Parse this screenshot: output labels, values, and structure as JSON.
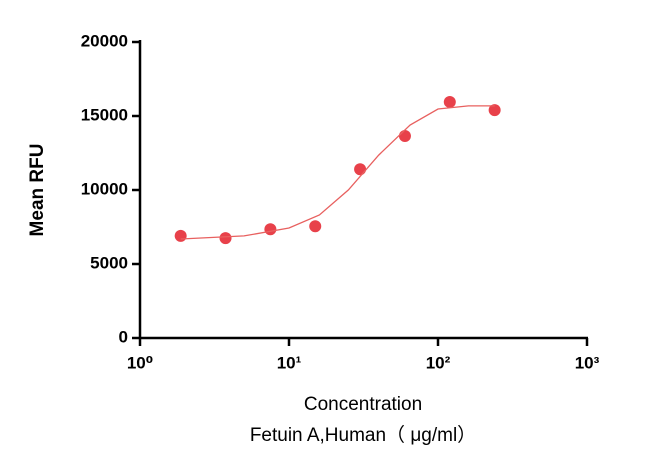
{
  "chart_data": {
    "type": "scatter",
    "ylabel": "Mean RFU",
    "xlabel": [
      "Concentration",
      "Fetuin A,Human（ μg/ml）"
    ],
    "xscale": "log",
    "xlim": [
      1,
      1000
    ],
    "xticks": [
      {
        "value": 1,
        "label": "10⁰"
      },
      {
        "value": 10,
        "label": "10¹"
      },
      {
        "value": 100,
        "label": "10²"
      },
      {
        "value": 1000,
        "label": "10³"
      }
    ],
    "ylim": [
      0,
      20000
    ],
    "yticks": [
      0,
      5000,
      10000,
      15000,
      20000
    ],
    "grid": false,
    "series": [
      {
        "color": "#e8414a",
        "x": [
          1.875,
          3.75,
          7.5,
          15,
          30,
          60,
          120,
          240
        ],
        "values": [
          6900,
          6750,
          7350,
          7550,
          11400,
          13650,
          15950,
          15400
        ]
      },
      {
        "color": "#e8605f",
        "line": true,
        "x": [
          1.875,
          5,
          10,
          16,
          25,
          40,
          65,
          100,
          160,
          240
        ],
        "values": [
          6690,
          6900,
          7430,
          8310,
          10000,
          12360,
          14390,
          15470,
          15680,
          15680
        ]
      }
    ]
  }
}
